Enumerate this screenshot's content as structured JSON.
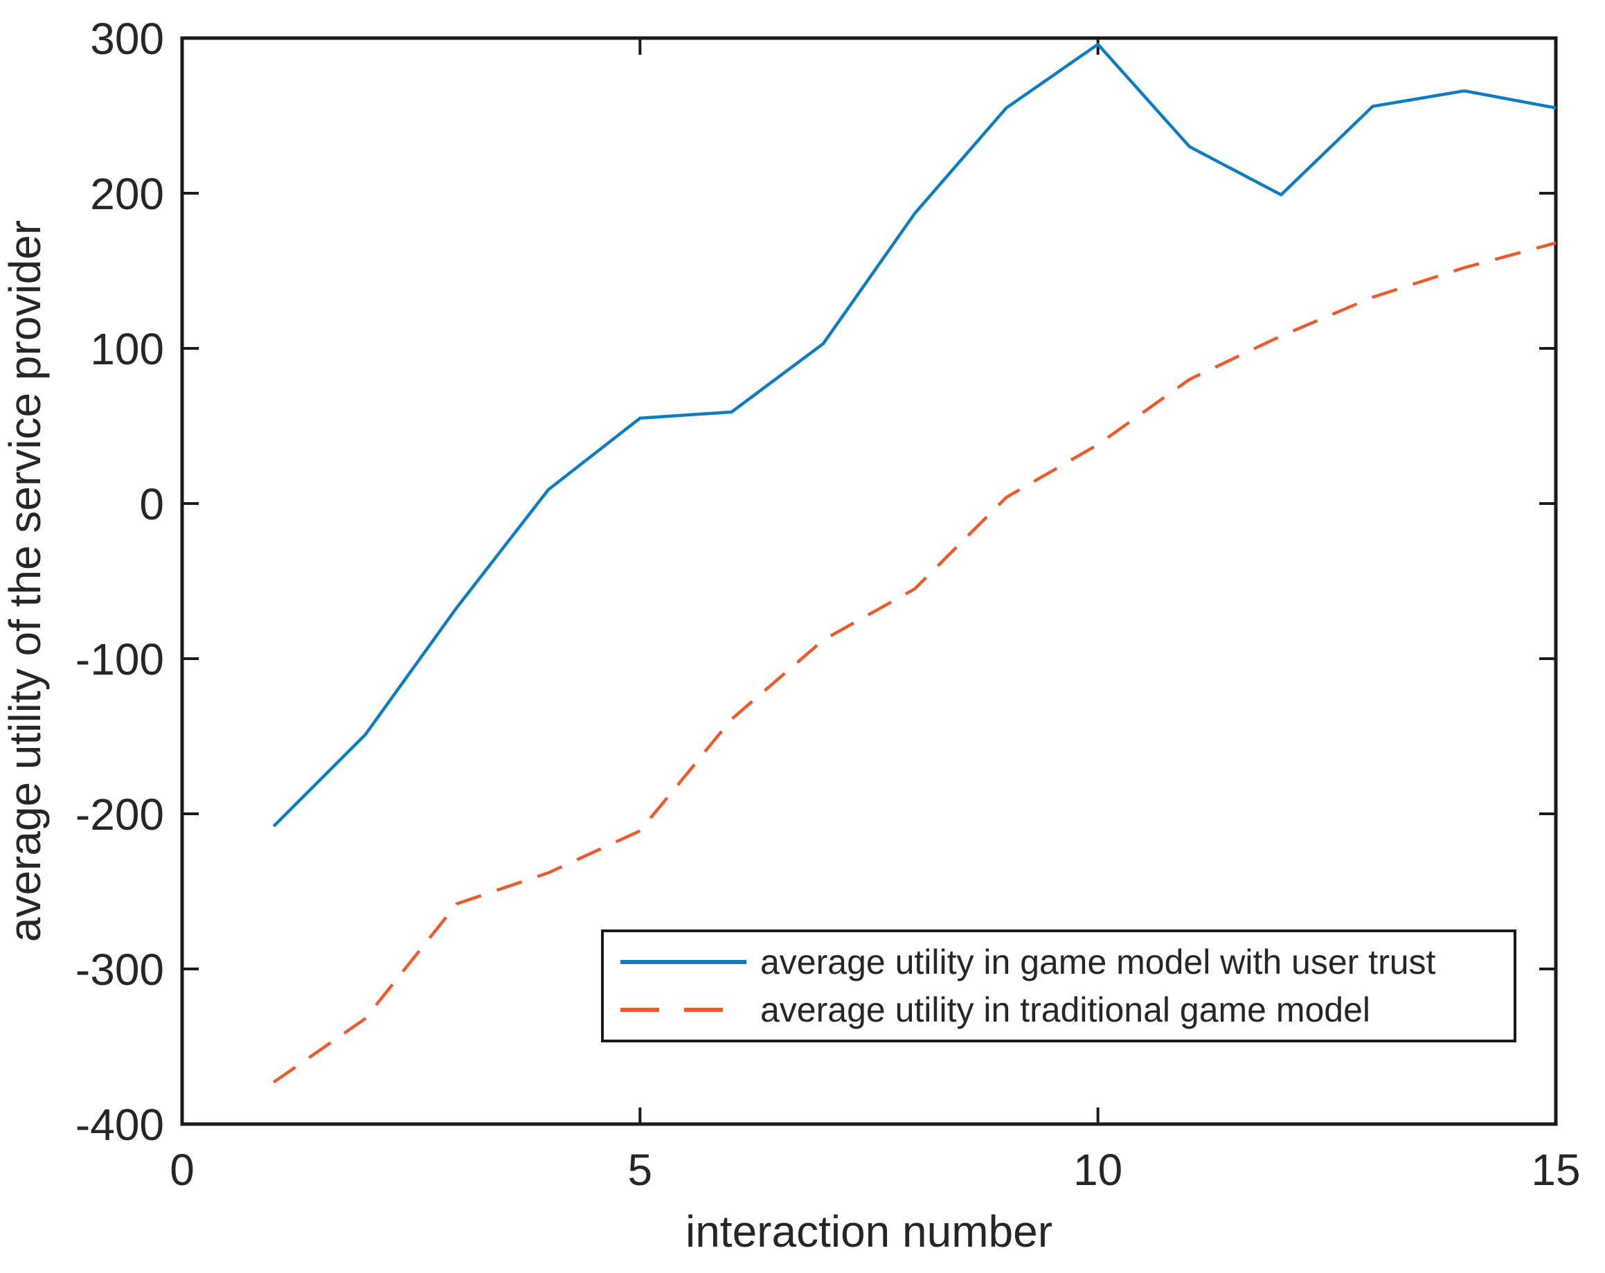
{
  "figure": {
    "background": "#ffffff",
    "axis_color": "#1a1a1a",
    "tick_text_color": "#262626"
  },
  "chart_data": {
    "type": "line",
    "title": "",
    "xlabel": "interaction number",
    "ylabel": "average utility of the service provider",
    "xlim": [
      0,
      15
    ],
    "ylim": [
      -400,
      300
    ],
    "x_ticks": [
      0,
      5,
      10,
      15
    ],
    "y_ticks": [
      300,
      200,
      100,
      0,
      -100,
      -200,
      -300,
      -400
    ],
    "grid": false,
    "legend_position": "inside-lower-right",
    "x": [
      1,
      2,
      3,
      4,
      5,
      6,
      7,
      8,
      9,
      10,
      11,
      12,
      13,
      14,
      15
    ],
    "series": [
      {
        "name": "average utility in game model with user trust",
        "color": "#0E7CC1",
        "style": "solid",
        "values": [
          -208,
          -149,
          -67,
          9,
          55,
          59,
          103,
          187,
          255,
          296,
          230,
          199,
          256,
          266,
          255
        ]
      },
      {
        "name": "average utility in traditional game model",
        "color": "#EE5A2C",
        "style": "dashed",
        "values": [
          -373,
          -332,
          -258,
          -238,
          -211,
          -139,
          -88,
          -55,
          4,
          38,
          80,
          108,
          133,
          152,
          168
        ]
      }
    ]
  }
}
